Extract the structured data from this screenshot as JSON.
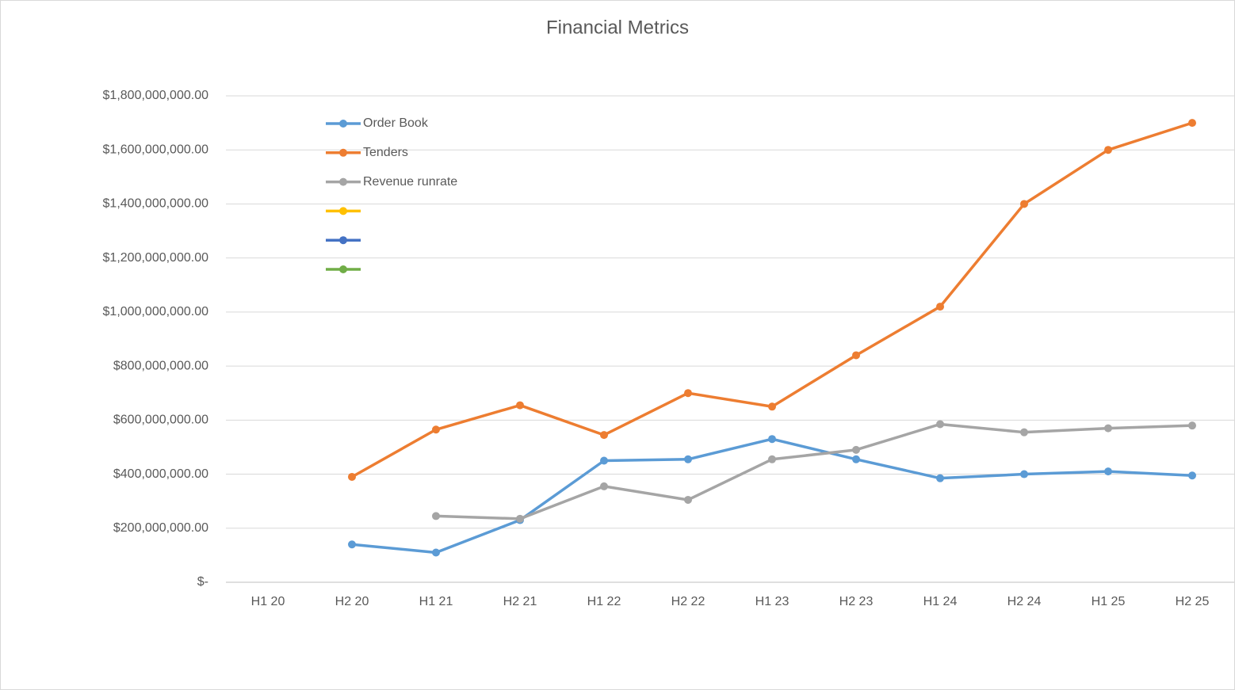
{
  "chart_data": {
    "type": "line",
    "title": "Financial Metrics",
    "categories": [
      "H1 20",
      "H2 20",
      "H1 21",
      "H2 21",
      "H1 22",
      "H2 22",
      "H1 23",
      "H2 23",
      "H1 24",
      "H2 24",
      "H1 25",
      "H2 25"
    ],
    "series": [
      {
        "name": "Order Book",
        "color": "#5b9bd5",
        "values": [
          null,
          140000000,
          110000000,
          230000000,
          450000000,
          455000000,
          530000000,
          455000000,
          385000000,
          400000000,
          410000000,
          395000000
        ]
      },
      {
        "name": "Tenders",
        "color": "#ed7d31",
        "values": [
          null,
          390000000,
          565000000,
          655000000,
          545000000,
          700000000,
          650000000,
          840000000,
          1020000000,
          1400000000,
          1600000000,
          1700000000
        ]
      },
      {
        "name": "Revenue runrate",
        "color": "#a5a5a5",
        "values": [
          null,
          null,
          245000000,
          235000000,
          355000000,
          305000000,
          455000000,
          490000000,
          585000000,
          555000000,
          570000000,
          580000000
        ]
      },
      {
        "name": null,
        "color": "#ffc000",
        "values": [
          null,
          null,
          null,
          null,
          null,
          null,
          null,
          null,
          null,
          null,
          null,
          null
        ]
      },
      {
        "name": null,
        "color": "#4472c4",
        "values": [
          null,
          null,
          null,
          null,
          null,
          null,
          null,
          null,
          null,
          null,
          null,
          null
        ]
      },
      {
        "name": null,
        "color": "#70ad47",
        "values": [
          null,
          null,
          null,
          null,
          null,
          null,
          null,
          null,
          null,
          null,
          null,
          null
        ]
      }
    ],
    "ylim": [
      0,
      1800000000
    ],
    "yticks": [
      {
        "value": 0,
        "label": "$-"
      },
      {
        "value": 200000000,
        "label": "$200,000,000.00"
      },
      {
        "value": 400000000,
        "label": "$400,000,000.00"
      },
      {
        "value": 600000000,
        "label": "$600,000,000.00"
      },
      {
        "value": 800000000,
        "label": "$800,000,000.00"
      },
      {
        "value": 1000000000,
        "label": "$1,000,000,000.00"
      },
      {
        "value": 1200000000,
        "label": "$1,200,000,000.00"
      },
      {
        "value": 1400000000,
        "label": "$1,400,000,000.00"
      },
      {
        "value": 1600000000,
        "label": "$1,600,000,000.00"
      },
      {
        "value": 1800000000,
        "label": "$1,800,000,000.00"
      }
    ],
    "grid": true,
    "legend": "top-left"
  }
}
